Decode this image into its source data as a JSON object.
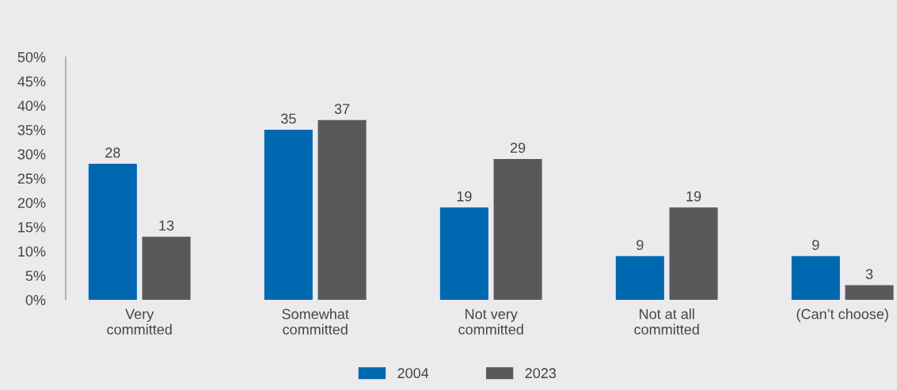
{
  "chart_data": {
    "type": "bar",
    "categories": [
      "Very\ncommitted",
      "Somewhat\ncommitted",
      "Not very\ncommitted",
      "Not at all\ncommitted",
      "(Can’t choose)"
    ],
    "series": [
      {
        "name": "2004",
        "color": "#0067b1",
        "values": [
          28,
          35,
          19,
          9,
          9
        ]
      },
      {
        "name": "2023",
        "color": "#58595b",
        "values": [
          13,
          37,
          29,
          19,
          3
        ]
      }
    ],
    "ylim": [
      0,
      50
    ],
    "yticks": [
      {
        "value": 0,
        "label": "0%"
      },
      {
        "value": 5,
        "label": "5%"
      },
      {
        "value": 10,
        "label": "10%"
      },
      {
        "value": 15,
        "label": "15%"
      },
      {
        "value": 20,
        "label": "20%"
      },
      {
        "value": 25,
        "label": "25%"
      },
      {
        "value": 30,
        "label": "30%"
      },
      {
        "value": 35,
        "label": "35%"
      },
      {
        "value": 40,
        "label": "40%"
      },
      {
        "value": 45,
        "label": "45%"
      },
      {
        "value": 50,
        "label": "50%"
      }
    ],
    "data_labels": true,
    "grid": false,
    "legend": "bottom"
  }
}
